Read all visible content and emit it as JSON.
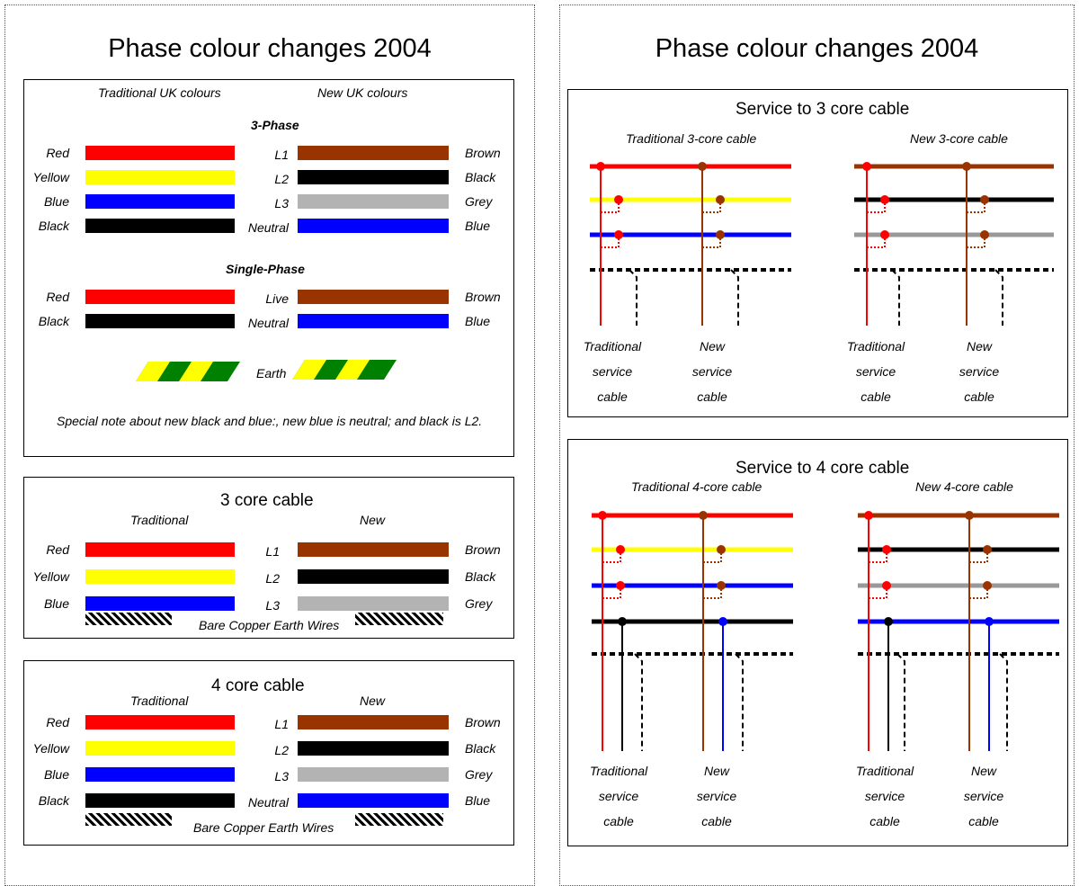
{
  "left_panel": {
    "title": "Phase colour changes 2004",
    "colours_box": {
      "traditional_heading": "Traditional UK colours",
      "new_heading": "New UK colours",
      "three_phase": {
        "heading": "3-Phase",
        "rows": [
          {
            "old": "Red",
            "old_color": "#ff0000",
            "mid": "L1",
            "new": "Brown",
            "new_color": "#993300"
          },
          {
            "old": "Yellow",
            "old_color": "#ffff00",
            "mid": "L2",
            "new": "Black",
            "new_color": "#000000"
          },
          {
            "old": "Blue",
            "old_color": "#0000ff",
            "mid": "L3",
            "new": "Grey",
            "new_color": "#b3b3b3"
          },
          {
            "old": "Black",
            "old_color": "#000000",
            "mid": "Neutral",
            "new": "Blue",
            "new_color": "#0000ff"
          }
        ]
      },
      "single_phase": {
        "heading": "Single-Phase",
        "rows": [
          {
            "old": "Red",
            "old_color": "#ff0000",
            "mid": "Live",
            "new": "Brown",
            "new_color": "#993300"
          },
          {
            "old": "Black",
            "old_color": "#000000",
            "mid": "Neutral",
            "new": "Blue",
            "new_color": "#0000ff"
          }
        ]
      },
      "earth_label": "Earth",
      "note": "Special note about new black and blue:, new blue is neutral; and black is L2."
    },
    "three_core_box": {
      "title": "3 core cable",
      "traditional": "Traditional",
      "new": "New",
      "rows": [
        {
          "old": "Red",
          "old_color": "#ff0000",
          "mid": "L1",
          "new": "Brown",
          "new_color": "#993300"
        },
        {
          "old": "Yellow",
          "old_color": "#ffff00",
          "mid": "L2",
          "new": "Black",
          "new_color": "#000000"
        },
        {
          "old": "Blue",
          "old_color": "#0000ff",
          "mid": "L3",
          "new": "Grey",
          "new_color": "#b3b3b3"
        }
      ],
      "earth_label": "Bare Copper Earth Wires"
    },
    "four_core_box": {
      "title": "4 core cable",
      "traditional": "Traditional",
      "new": "New",
      "rows": [
        {
          "old": "Red",
          "old_color": "#ff0000",
          "mid": "L1",
          "new": "Brown",
          "new_color": "#993300"
        },
        {
          "old": "Yellow",
          "old_color": "#ffff00",
          "mid": "L2",
          "new": "Black",
          "new_color": "#000000"
        },
        {
          "old": "Blue",
          "old_color": "#0000ff",
          "mid": "L3",
          "new": "Grey",
          "new_color": "#b3b3b3"
        },
        {
          "old": "Black",
          "old_color": "#000000",
          "mid": "Neutral",
          "new": "Blue",
          "new_color": "#0000ff"
        }
      ],
      "earth_label": "Bare Copper Earth Wires"
    }
  },
  "right_panel": {
    "title": "Phase colour changes 2004",
    "service_3": {
      "title": "Service to 3 core cable",
      "left_subtitle": "Traditional 3-core cable",
      "right_subtitle": "New 3-core cable",
      "labels": {
        "trad_service": [
          "Traditional",
          "service",
          "cable"
        ],
        "new_service": [
          "New",
          "service",
          "cable"
        ]
      }
    },
    "service_4": {
      "title": "Service to 4 core cable",
      "left_subtitle": "Traditional 4-core cable",
      "right_subtitle": "New 4-core cable",
      "labels": {
        "trad_service": [
          "Traditional",
          "service",
          "cable"
        ],
        "new_service": [
          "New",
          "service",
          "cable"
        ]
      }
    }
  },
  "colors": {
    "red": "#ff0000",
    "yellow": "#ffff00",
    "blue": "#0000ff",
    "black": "#000000",
    "brown": "#993300",
    "grey": "#999999",
    "earth_green": "#008000"
  }
}
